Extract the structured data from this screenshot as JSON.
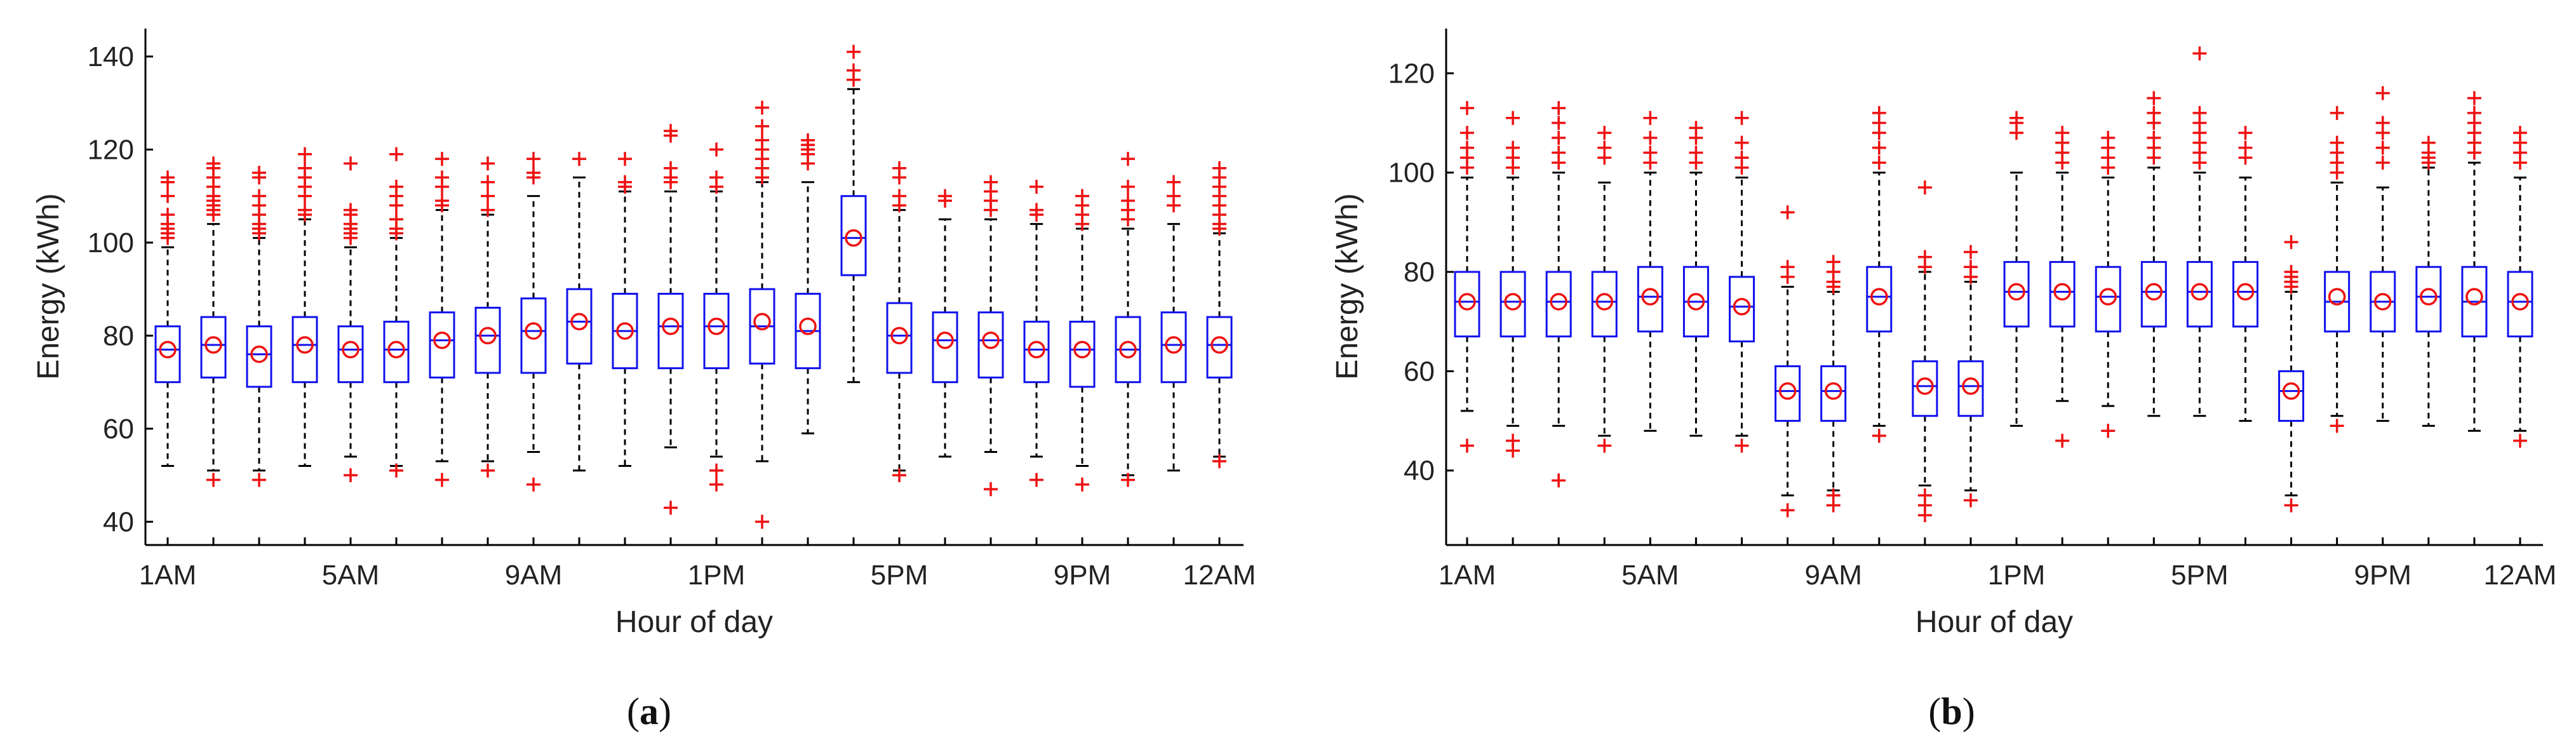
{
  "chart_data": [
    {
      "type": "box",
      "panel_label": "a",
      "xlabel": "Hour of day",
      "ylabel": "Energy (kWh)",
      "ylim": [
        35,
        146
      ],
      "yticks": [
        40,
        60,
        80,
        100,
        120,
        140
      ],
      "xtick_labels": [
        {
          "hour": 1,
          "label": "1AM"
        },
        {
          "hour": 5,
          "label": "5AM"
        },
        {
          "hour": 9,
          "label": "9AM"
        },
        {
          "hour": 13,
          "label": "1PM"
        },
        {
          "hour": 17,
          "label": "5PM"
        },
        {
          "hour": 21,
          "label": "9PM"
        },
        {
          "hour": 24,
          "label": "12AM"
        }
      ],
      "boxes": [
        {
          "hour": 1,
          "q1": 70,
          "median": 77,
          "q3": 82,
          "wlo": 52,
          "whi": 99,
          "mean": 77,
          "outliers": [
            101,
            102,
            103,
            104,
            106,
            110,
            113,
            114
          ]
        },
        {
          "hour": 2,
          "q1": 71,
          "median": 78,
          "q3": 84,
          "wlo": 51,
          "whi": 104,
          "mean": 78,
          "outliers": [
            49,
            106,
            107,
            108,
            109,
            110,
            112,
            114,
            116,
            117
          ]
        },
        {
          "hour": 3,
          "q1": 69,
          "median": 76,
          "q3": 82,
          "wlo": 51,
          "whi": 101,
          "mean": 76,
          "outliers": [
            49,
            102,
            103,
            104,
            106,
            108,
            110,
            114,
            115
          ]
        },
        {
          "hour": 4,
          "q1": 70,
          "median": 78,
          "q3": 84,
          "wlo": 52,
          "whi": 105,
          "mean": 78,
          "outliers": [
            106,
            107,
            110,
            112,
            114,
            116,
            119
          ]
        },
        {
          "hour": 5,
          "q1": 70,
          "median": 77,
          "q3": 82,
          "wlo": 54,
          "whi": 99,
          "mean": 77,
          "outliers": [
            50,
            101,
            102,
            103,
            104,
            106,
            107,
            117
          ]
        },
        {
          "hour": 6,
          "q1": 70,
          "median": 77,
          "q3": 83,
          "wlo": 52,
          "whi": 101,
          "mean": 77,
          "outliers": [
            51,
            102,
            103,
            105,
            108,
            110,
            112,
            119
          ]
        },
        {
          "hour": 7,
          "q1": 71,
          "median": 79,
          "q3": 85,
          "wlo": 53,
          "whi": 107,
          "mean": 79,
          "outliers": [
            49,
            108,
            109,
            112,
            114,
            118
          ]
        },
        {
          "hour": 8,
          "q1": 72,
          "median": 80,
          "q3": 86,
          "wlo": 53,
          "whi": 106,
          "mean": 80,
          "outliers": [
            51,
            107,
            110,
            113,
            117
          ]
        },
        {
          "hour": 9,
          "q1": 72,
          "median": 81,
          "q3": 88,
          "wlo": 55,
          "whi": 110,
          "mean": 81,
          "outliers": [
            48,
            114,
            115,
            118
          ]
        },
        {
          "hour": 10,
          "q1": 74,
          "median": 83,
          "q3": 90,
          "wlo": 51,
          "whi": 114,
          "mean": 83,
          "outliers": [
            118
          ]
        },
        {
          "hour": 11,
          "q1": 73,
          "median": 81,
          "q3": 89,
          "wlo": 52,
          "whi": 111,
          "mean": 81,
          "outliers": [
            112,
            113,
            118
          ]
        },
        {
          "hour": 12,
          "q1": 73,
          "median": 82,
          "q3": 89,
          "wlo": 56,
          "whi": 111,
          "mean": 82,
          "outliers": [
            43,
            113,
            114,
            116,
            123,
            124
          ]
        },
        {
          "hour": 13,
          "q1": 73,
          "median": 82,
          "q3": 89,
          "wlo": 54,
          "whi": 111,
          "mean": 82,
          "outliers": [
            48,
            51,
            112,
            114,
            120
          ]
        },
        {
          "hour": 14,
          "q1": 74,
          "median": 82,
          "q3": 90,
          "wlo": 53,
          "whi": 113,
          "mean": 83,
          "outliers": [
            40,
            114,
            116,
            118,
            120,
            122,
            125,
            129
          ]
        },
        {
          "hour": 15,
          "q1": 73,
          "median": 81,
          "q3": 89,
          "wlo": 59,
          "whi": 113,
          "mean": 82,
          "outliers": [
            117,
            119,
            120,
            121,
            122
          ]
        },
        {
          "hour": 16,
          "q1": 93,
          "median": 101,
          "q3": 110,
          "wlo": 70,
          "whi": 133,
          "mean": 101,
          "outliers": [
            135,
            137,
            141
          ]
        },
        {
          "hour": 17,
          "q1": 72,
          "median": 80,
          "q3": 87,
          "wlo": 51,
          "whi": 107,
          "mean": 80,
          "outliers": [
            50,
            108,
            110,
            114,
            116
          ]
        },
        {
          "hour": 18,
          "q1": 70,
          "median": 79,
          "q3": 85,
          "wlo": 54,
          "whi": 105,
          "mean": 79,
          "outliers": [
            109,
            110
          ]
        },
        {
          "hour": 19,
          "q1": 71,
          "median": 79,
          "q3": 85,
          "wlo": 55,
          "whi": 105,
          "mean": 79,
          "outliers": [
            47,
            107,
            109,
            111,
            113
          ]
        },
        {
          "hour": 20,
          "q1": 70,
          "median": 77,
          "q3": 83,
          "wlo": 54,
          "whi": 104,
          "mean": 77,
          "outliers": [
            49,
            106,
            107,
            112
          ]
        },
        {
          "hour": 21,
          "q1": 69,
          "median": 77,
          "q3": 83,
          "wlo": 52,
          "whi": 103,
          "mean": 77,
          "outliers": [
            48,
            104,
            106,
            108,
            110
          ]
        },
        {
          "hour": 22,
          "q1": 70,
          "median": 77,
          "q3": 84,
          "wlo": 50,
          "whi": 103,
          "mean": 77,
          "outliers": [
            49,
            105,
            107,
            109,
            112,
            118
          ]
        },
        {
          "hour": 23,
          "q1": 70,
          "median": 78,
          "q3": 85,
          "wlo": 51,
          "whi": 104,
          "mean": 78,
          "outliers": [
            108,
            110,
            113
          ]
        },
        {
          "hour": 24,
          "q1": 71,
          "median": 78,
          "q3": 84,
          "wlo": 54,
          "whi": 102,
          "mean": 78,
          "outliers": [
            53,
            103,
            104,
            106,
            108,
            110,
            112,
            114,
            116
          ]
        }
      ]
    },
    {
      "type": "box",
      "panel_label": "b",
      "xlabel": "Hour of day",
      "ylabel": "Energy (kWh)",
      "ylim": [
        25,
        129
      ],
      "yticks": [
        40,
        60,
        80,
        100,
        120
      ],
      "xtick_labels": [
        {
          "hour": 1,
          "label": "1AM"
        },
        {
          "hour": 5,
          "label": "5AM"
        },
        {
          "hour": 9,
          "label": "9AM"
        },
        {
          "hour": 13,
          "label": "1PM"
        },
        {
          "hour": 17,
          "label": "5PM"
        },
        {
          "hour": 21,
          "label": "9PM"
        },
        {
          "hour": 24,
          "label": "12AM"
        }
      ],
      "boxes": [
        {
          "hour": 1,
          "q1": 67,
          "median": 74,
          "q3": 80,
          "wlo": 52,
          "whi": 99,
          "mean": 74,
          "outliers": [
            45,
            101,
            103,
            105,
            108,
            113
          ]
        },
        {
          "hour": 2,
          "q1": 67,
          "median": 74,
          "q3": 80,
          "wlo": 49,
          "whi": 99,
          "mean": 74,
          "outliers": [
            44,
            46,
            101,
            103,
            105,
            111
          ]
        },
        {
          "hour": 3,
          "q1": 67,
          "median": 74,
          "q3": 80,
          "wlo": 49,
          "whi": 100,
          "mean": 74,
          "outliers": [
            38,
            102,
            104,
            107,
            110,
            113
          ]
        },
        {
          "hour": 4,
          "q1": 67,
          "median": 74,
          "q3": 80,
          "wlo": 47,
          "whi": 98,
          "mean": 74,
          "outliers": [
            45,
            103,
            105,
            108
          ]
        },
        {
          "hour": 5,
          "q1": 68,
          "median": 75,
          "q3": 81,
          "wlo": 48,
          "whi": 100,
          "mean": 75,
          "outliers": [
            102,
            104,
            107,
            111
          ]
        },
        {
          "hour": 6,
          "q1": 67,
          "median": 74,
          "q3": 81,
          "wlo": 47,
          "whi": 100,
          "mean": 74,
          "outliers": [
            102,
            104,
            107,
            109
          ]
        },
        {
          "hour": 7,
          "q1": 66,
          "median": 73,
          "q3": 79,
          "wlo": 47,
          "whi": 99,
          "mean": 73,
          "outliers": [
            45,
            101,
            103,
            106,
            111
          ]
        },
        {
          "hour": 8,
          "q1": 50,
          "median": 56,
          "q3": 61,
          "wlo": 35,
          "whi": 77,
          "mean": 56,
          "outliers": [
            32,
            79,
            81,
            92
          ]
        },
        {
          "hour": 9,
          "q1": 50,
          "median": 56,
          "q3": 61,
          "wlo": 36,
          "whi": 76,
          "mean": 56,
          "outliers": [
            33,
            35,
            77,
            78,
            80,
            82
          ]
        },
        {
          "hour": 10,
          "q1": 68,
          "median": 75,
          "q3": 81,
          "wlo": 49,
          "whi": 100,
          "mean": 75,
          "outliers": [
            47,
            102,
            105,
            108,
            110,
            112
          ]
        },
        {
          "hour": 11,
          "q1": 51,
          "median": 57,
          "q3": 62,
          "wlo": 37,
          "whi": 80,
          "mean": 57,
          "outliers": [
            31,
            33,
            35,
            81,
            83,
            97
          ]
        },
        {
          "hour": 12,
          "q1": 51,
          "median": 57,
          "q3": 62,
          "wlo": 36,
          "whi": 78,
          "mean": 57,
          "outliers": [
            34,
            79,
            81,
            84
          ]
        },
        {
          "hour": 13,
          "q1": 69,
          "median": 76,
          "q3": 82,
          "wlo": 49,
          "whi": 100,
          "mean": 76,
          "outliers": [
            108,
            110,
            111
          ]
        },
        {
          "hour": 14,
          "q1": 69,
          "median": 76,
          "q3": 82,
          "wlo": 54,
          "whi": 100,
          "mean": 76,
          "outliers": [
            46,
            102,
            104,
            106,
            108
          ]
        },
        {
          "hour": 15,
          "q1": 68,
          "median": 75,
          "q3": 81,
          "wlo": 53,
          "whi": 99,
          "mean": 75,
          "outliers": [
            48,
            101,
            103,
            105,
            107
          ]
        },
        {
          "hour": 16,
          "q1": 69,
          "median": 76,
          "q3": 82,
          "wlo": 51,
          "whi": 101,
          "mean": 76,
          "outliers": [
            103,
            105,
            107,
            110,
            112,
            115
          ]
        },
        {
          "hour": 17,
          "q1": 69,
          "median": 76,
          "q3": 82,
          "wlo": 51,
          "whi": 100,
          "mean": 76,
          "outliers": [
            102,
            104,
            106,
            108,
            110,
            112,
            124
          ]
        },
        {
          "hour": 18,
          "q1": 69,
          "median": 76,
          "q3": 82,
          "wlo": 50,
          "whi": 99,
          "mean": 76,
          "outliers": [
            103,
            105,
            108
          ]
        },
        {
          "hour": 19,
          "q1": 50,
          "median": 56,
          "q3": 60,
          "wlo": 35,
          "whi": 76,
          "mean": 56,
          "outliers": [
            33,
            77,
            78,
            79,
            80,
            86
          ]
        },
        {
          "hour": 20,
          "q1": 68,
          "median": 74,
          "q3": 80,
          "wlo": 51,
          "whi": 98,
          "mean": 75,
          "outliers": [
            49,
            100,
            102,
            104,
            106,
            112
          ]
        },
        {
          "hour": 21,
          "q1": 68,
          "median": 74,
          "q3": 80,
          "wlo": 50,
          "whi": 97,
          "mean": 74,
          "outliers": [
            102,
            105,
            108,
            110,
            116
          ]
        },
        {
          "hour": 22,
          "q1": 68,
          "median": 75,
          "q3": 81,
          "wlo": 49,
          "whi": 101,
          "mean": 75,
          "outliers": [
            102,
            103,
            104,
            106
          ]
        },
        {
          "hour": 23,
          "q1": 67,
          "median": 74,
          "q3": 81,
          "wlo": 48,
          "whi": 102,
          "mean": 75,
          "outliers": [
            104,
            106,
            108,
            110,
            112,
            115
          ]
        },
        {
          "hour": 24,
          "q1": 67,
          "median": 74,
          "q3": 80,
          "wlo": 48,
          "whi": 99,
          "mean": 74,
          "outliers": [
            46,
            102,
            104,
            106,
            108
          ]
        }
      ]
    }
  ]
}
